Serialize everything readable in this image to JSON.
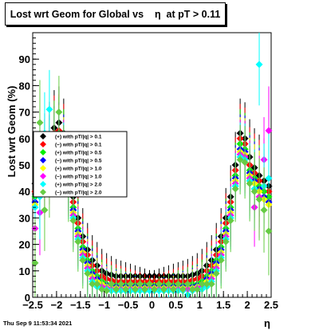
{
  "chart_data": {
    "type": "scatter",
    "title": "Lost wrt Geom for Global vs    η  at pT > 0.11",
    "xlabel": "η",
    "ylabel": "Lost wrt Geom (%)",
    "xlim": [
      -2.5,
      2.5
    ],
    "ylim": [
      0,
      100
    ],
    "x_ticks": [
      "−2.5",
      "−2",
      "−1.5",
      "−1",
      "−0.5",
      "0",
      "0.5",
      "1",
      "1.5",
      "2",
      "2.5"
    ],
    "y_ticks": [
      "0",
      "10",
      "20",
      "30",
      "40",
      "50",
      "60",
      "70",
      "80",
      "90"
    ],
    "grid": false,
    "legend_position": "left-middle",
    "series": [
      {
        "name": "(+) with pT/|q| > 0.1",
        "color": "#000000",
        "marker": "diamond",
        "x": [
          -2.45,
          -2.35,
          -2.25,
          -2.15,
          -2.05,
          -1.95,
          -1.85,
          -1.75,
          -1.65,
          -1.55,
          -1.45,
          -1.35,
          -1.25,
          -1.15,
          -1.05,
          -0.95,
          -0.85,
          -0.75,
          -0.65,
          -0.55,
          -0.45,
          -0.35,
          -0.25,
          -0.15,
          -0.05,
          0.05,
          0.15,
          0.25,
          0.35,
          0.45,
          0.55,
          0.65,
          0.75,
          0.85,
          0.95,
          1.05,
          1.15,
          1.25,
          1.35,
          1.45,
          1.55,
          1.65,
          1.75,
          1.85,
          1.95,
          2.05,
          2.15,
          2.25,
          2.35,
          2.45
        ],
        "y": [
          43,
          50,
          54,
          59,
          64,
          66,
          62,
          50,
          38,
          30,
          23,
          18,
          14,
          12,
          10,
          9,
          8.5,
          8,
          8,
          8,
          8,
          8,
          8,
          8,
          8,
          8,
          8,
          8,
          8,
          8,
          8,
          8,
          8,
          8.5,
          9,
          10,
          12,
          14,
          18,
          23,
          30,
          38,
          50,
          62,
          60,
          53,
          49,
          46,
          44,
          42
        ]
      },
      {
        "name": "(−) with pT/|q| > 0.1",
        "color": "#ff0000",
        "marker": "diamond",
        "x": [
          -2.45,
          -2.35,
          -2.25,
          -2.15,
          -2.05,
          -1.95,
          -1.85,
          -1.75,
          -1.65,
          -1.55,
          -1.45,
          -1.35,
          -1.25,
          -1.15,
          -1.05,
          -0.95,
          -0.85,
          -0.75,
          -0.65,
          -0.55,
          -0.45,
          -0.35,
          -0.25,
          -0.15,
          -0.05,
          0.05,
          0.15,
          0.25,
          0.35,
          0.45,
          0.55,
          0.65,
          0.75,
          0.85,
          0.95,
          1.05,
          1.15,
          1.25,
          1.35,
          1.45,
          1.55,
          1.65,
          1.75,
          1.85,
          1.95,
          2.05,
          2.15,
          2.25,
          2.35,
          2.45
        ],
        "y": [
          40,
          46,
          52,
          57,
          62,
          63,
          60,
          48,
          36,
          28,
          21,
          16,
          12,
          10,
          8,
          7,
          6.5,
          6,
          6,
          6,
          6,
          6,
          6,
          6,
          6,
          6,
          6,
          6,
          6,
          6,
          6,
          6,
          6,
          6.5,
          7,
          8,
          10,
          12,
          16,
          21,
          28,
          36,
          48,
          60,
          58,
          50,
          47,
          44,
          42,
          40
        ]
      },
      {
        "name": "(+) with pT/|q| > 0.5",
        "color": "#00ee00",
        "marker": "diamond",
        "x": [
          -2.45,
          -2.35,
          -2.25,
          -2.15,
          -2.05,
          -1.95,
          -1.85,
          -1.75,
          -1.65,
          -1.55,
          -1.45,
          -1.35,
          -1.25,
          -1.15,
          -1.05,
          -0.95,
          -0.85,
          -0.75,
          -0.65,
          -0.55,
          -0.45,
          -0.35,
          -0.25,
          -0.15,
          -0.05,
          0.05,
          0.15,
          0.25,
          0.35,
          0.45,
          0.55,
          0.65,
          0.75,
          0.85,
          0.95,
          1.05,
          1.15,
          1.25,
          1.35,
          1.45,
          1.55,
          1.65,
          1.75,
          1.85,
          1.95,
          2.05,
          2.15,
          2.25,
          2.35,
          2.45
        ],
        "y": [
          38,
          44,
          50,
          55,
          60,
          62,
          58,
          46,
          34,
          26,
          19,
          14,
          10,
          8,
          6,
          5,
          5,
          4.5,
          4.5,
          4.5,
          4.5,
          4.5,
          4.5,
          4.5,
          4.5,
          4.5,
          4.5,
          4.5,
          4.5,
          4.5,
          4.5,
          4.5,
          4.5,
          5,
          5,
          6,
          8,
          10,
          14,
          19,
          26,
          34,
          46,
          58,
          56,
          48,
          45,
          42,
          40,
          38
        ]
      },
      {
        "name": "(−) with pT/|q| > 0.5",
        "color": "#0000ff",
        "marker": "diamond",
        "x": [
          -2.45,
          -2.35,
          -2.25,
          -2.15,
          -2.05,
          -1.95,
          -1.85,
          -1.75,
          -1.65,
          -1.55,
          -1.45,
          -1.35,
          -1.25,
          -1.15,
          -1.05,
          -0.95,
          -0.85,
          -0.75,
          -0.65,
          -0.55,
          -0.45,
          -0.35,
          -0.25,
          -0.15,
          -0.05,
          0.05,
          0.15,
          0.25,
          0.35,
          0.45,
          0.55,
          0.65,
          0.75,
          0.85,
          0.95,
          1.05,
          1.15,
          1.25,
          1.35,
          1.45,
          1.55,
          1.65,
          1.75,
          1.85,
          1.95,
          2.05,
          2.15,
          2.25,
          2.35,
          2.45
        ],
        "y": [
          36,
          42,
          48,
          54,
          58,
          60,
          56,
          45,
          33,
          25,
          18,
          13,
          9,
          7,
          5,
          4.5,
          4,
          4,
          4,
          4,
          4,
          4,
          4,
          4,
          4,
          4,
          4,
          4,
          4,
          4,
          4,
          4,
          4,
          4,
          4.5,
          5,
          7,
          9,
          13,
          18,
          25,
          33,
          45,
          56,
          55,
          47,
          44,
          41,
          38,
          36
        ]
      },
      {
        "name": "(+) with pT/|q| > 1.0",
        "color": "#ffff00",
        "marker": "diamond",
        "x": [
          -2.45,
          -2.35,
          -2.25,
          -2.15,
          -2.05,
          -1.95,
          -1.85,
          -1.75,
          -1.65,
          -1.55,
          -1.45,
          -1.35,
          -1.25,
          -1.15,
          -1.05,
          -0.95,
          -0.85,
          -0.75,
          -0.65,
          -0.55,
          -0.45,
          -0.35,
          -0.25,
          -0.15,
          -0.05,
          0.05,
          0.15,
          0.25,
          0.35,
          0.45,
          0.55,
          0.65,
          0.75,
          0.85,
          0.95,
          1.05,
          1.15,
          1.25,
          1.35,
          1.45,
          1.55,
          1.65,
          1.75,
          1.85,
          1.95,
          2.05,
          2.15,
          2.25,
          2.35,
          2.45
        ],
        "y": [
          35,
          40,
          46,
          52,
          57,
          59,
          55,
          44,
          32,
          24,
          17,
          12,
          8,
          6,
          5,
          4,
          3.5,
          3.5,
          3.5,
          3.5,
          3.5,
          3.5,
          3.5,
          3.5,
          3.5,
          3.5,
          3.5,
          3.5,
          3.5,
          3.5,
          3.5,
          3.5,
          3.5,
          3.5,
          4,
          5,
          6,
          8,
          12,
          17,
          24,
          32,
          44,
          55,
          54,
          46,
          43,
          40,
          37,
          35
        ]
      },
      {
        "name": "(−) with pT/|q| > 1.0",
        "color": "#ff00ff",
        "marker": "diamond",
        "x": [
          -2.45,
          -2.35,
          -2.25,
          -2.15,
          -2.05,
          -1.95,
          -1.85,
          -1.75,
          -1.65,
          -1.55,
          -1.45,
          -1.35,
          -1.25,
          -1.15,
          -1.05,
          -0.95,
          -0.85,
          -0.75,
          -0.65,
          -0.55,
          -0.45,
          -0.35,
          -0.25,
          -0.15,
          -0.05,
          0.05,
          0.15,
          0.25,
          0.35,
          0.45,
          0.55,
          0.65,
          0.75,
          0.85,
          0.95,
          1.05,
          1.15,
          1.25,
          1.35,
          1.45,
          1.55,
          1.65,
          1.75,
          1.85,
          1.95,
          2.05,
          2.15,
          2.25,
          2.35,
          2.45
        ],
        "y": [
          26,
          32,
          45,
          50,
          56,
          58,
          54,
          43,
          31,
          23,
          16,
          11,
          7,
          5,
          4,
          3.5,
          3,
          3,
          3,
          3,
          3,
          3,
          3,
          3,
          3,
          3,
          3,
          3,
          3,
          3,
          3,
          3,
          3,
          3,
          3.5,
          4,
          5,
          7,
          11,
          16,
          23,
          31,
          43,
          54,
          53,
          45,
          34,
          38,
          52,
          63
        ]
      },
      {
        "name": "(+) with pT/|q| > 2.0",
        "color": "#00ffff",
        "marker": "diamond",
        "x": [
          -2.45,
          -2.35,
          -2.25,
          -2.15,
          -2.05,
          -1.95,
          -1.85,
          -1.75,
          -1.65,
          -1.55,
          -1.45,
          -1.35,
          -1.25,
          -1.15,
          -1.05,
          -0.95,
          -0.85,
          -0.75,
          -0.65,
          -0.55,
          -0.45,
          -0.35,
          -0.25,
          -0.15,
          -0.05,
          0.05,
          0.15,
          0.25,
          0.35,
          0.45,
          0.55,
          0.65,
          0.75,
          0.85,
          0.95,
          1.05,
          1.15,
          1.25,
          1.35,
          1.45,
          1.55,
          1.65,
          1.75,
          1.85,
          1.95,
          2.05,
          2.15,
          2.25,
          2.35,
          2.45
        ],
        "y": [
          34,
          38,
          62,
          71,
          55,
          58,
          53,
          42,
          30,
          22,
          15,
          10,
          6,
          4,
          3,
          3,
          2.5,
          2.5,
          2.5,
          2.5,
          2.5,
          2.5,
          2.5,
          2.5,
          2.5,
          2.5,
          2.5,
          2.5,
          2.5,
          2.5,
          2.5,
          2.5,
          1,
          2.5,
          3,
          3,
          4,
          6,
          10,
          15,
          22,
          30,
          42,
          53,
          52,
          44,
          41,
          88,
          42,
          45
        ]
      },
      {
        "name": "(−) with pT/|q| > 2.0",
        "color": "#66cc44",
        "marker": "diamond",
        "x": [
          -2.45,
          -2.35,
          -2.25,
          -2.15,
          -2.05,
          -1.95,
          -1.85,
          -1.75,
          -1.65,
          -1.55,
          -1.45,
          -1.35,
          -1.25,
          -1.15,
          -1.05,
          -0.95,
          -0.85,
          -0.75,
          -0.65,
          -0.55,
          -0.45,
          -0.35,
          -0.25,
          -0.15,
          -0.05,
          0.05,
          0.15,
          0.25,
          0.35,
          0.45,
          0.55,
          0.65,
          0.75,
          0.85,
          0.95,
          1.05,
          1.15,
          1.25,
          1.35,
          1.45,
          1.55,
          1.65,
          1.75,
          1.85,
          1.95,
          2.05,
          2.15,
          2.25,
          2.35,
          2.45
        ],
        "y": [
          13,
          66,
          33,
          45,
          60,
          70,
          52,
          41,
          29,
          21,
          14,
          9,
          5,
          5,
          3,
          2.5,
          5,
          3,
          5,
          3,
          5,
          3,
          5,
          3,
          5,
          3,
          5,
          3,
          5,
          3,
          5,
          3,
          5,
          3,
          3,
          5,
          5,
          5,
          9,
          14,
          21,
          29,
          41,
          52,
          51,
          43,
          40,
          37,
          33,
          25
        ]
      }
    ]
  },
  "footer": "Thu Sep  9 11:53:34 2021"
}
